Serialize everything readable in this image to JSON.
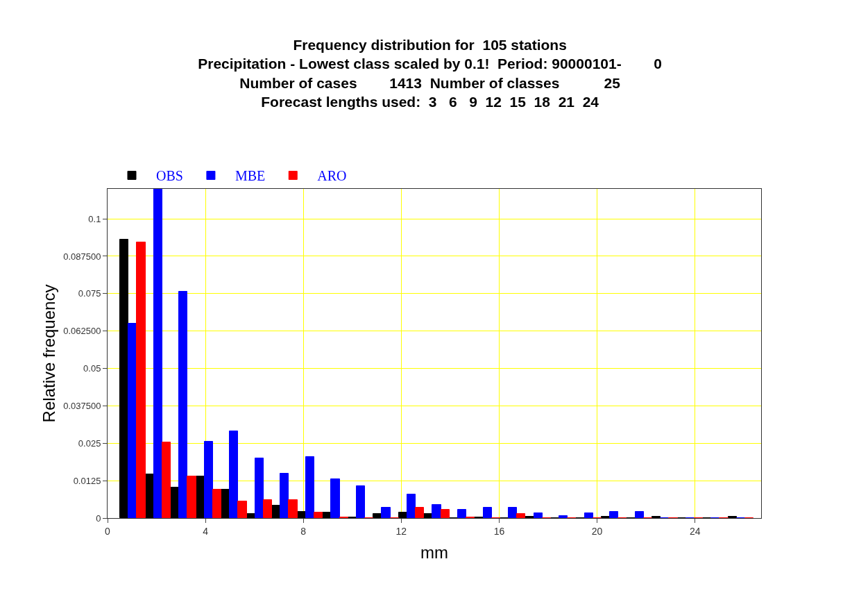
{
  "chart_data": {
    "type": "bar",
    "title": "Frequency distribution for  105 stations",
    "subtitle": "Precipitation - Lowest class scaled by 0.1!  Period: 90000101-        0\nNumber of cases        1413  Number of classes           25\nForecast lengths used:  3   6   9  12  15  18  21  24",
    "xlabel": "mm",
    "ylabel": "Relative frequency",
    "x": [
      1.03,
      2.07,
      3.1,
      4.14,
      5.17,
      6.21,
      7.24,
      8.28,
      9.31,
      10.35,
      11.38,
      12.42,
      13.45,
      14.49,
      15.52,
      16.56,
      17.59,
      18.63,
      19.66,
      20.7,
      21.73,
      22.77,
      23.8,
      24.84,
      25.87
    ],
    "series": [
      {
        "name": "OBS",
        "color": "#000000",
        "values": [
          0.093,
          0.0146,
          0.0103,
          0.014,
          0.0095,
          0.0013,
          0.0042,
          0.002,
          0.0019,
          0.0003,
          0.0013,
          0.0019,
          0.0013,
          0,
          0.0003,
          0,
          0.0004,
          0,
          0,
          0.0004,
          0,
          0.0004,
          0,
          0,
          0.0004
        ]
      },
      {
        "name": "MBE",
        "color": "#0000ff",
        "values": [
          0.065,
          0.11,
          0.0757,
          0.0255,
          0.0289,
          0.0199,
          0.0149,
          0.0205,
          0.0129,
          0.0106,
          0.0035,
          0.0078,
          0.0043,
          0.0029,
          0.0035,
          0.0035,
          0.0016,
          0.0006,
          0.0016,
          0.0021,
          0.0021,
          0,
          0,
          0,
          0
        ]
      },
      {
        "name": "ARO",
        "color": "#ff0000",
        "values": [
          0.0922,
          0.0254,
          0.014,
          0.0095,
          0.0055,
          0.006,
          0.006,
          0.0018,
          0.0003,
          0,
          0,
          0.0035,
          0.0029,
          0.0002,
          0,
          0.0013,
          0,
          0,
          0,
          0,
          0,
          0,
          0,
          0,
          0
        ]
      }
    ],
    "xlim": [
      0,
      26.7
    ],
    "xticks": [
      0,
      4,
      8,
      12,
      16,
      20,
      24
    ],
    "ylim": [
      0,
      0.11
    ],
    "yticks": [
      0,
      0.0125,
      0.025,
      {
        "value": 0.0375,
        "label": "0.037500"
      },
      0.05,
      {
        "value": 0.0625,
        "label": "0.062500"
      },
      0.075,
      {
        "value": 0.0875,
        "label": "0.087500"
      },
      0.1
    ],
    "grid": true,
    "legend": "top left"
  }
}
